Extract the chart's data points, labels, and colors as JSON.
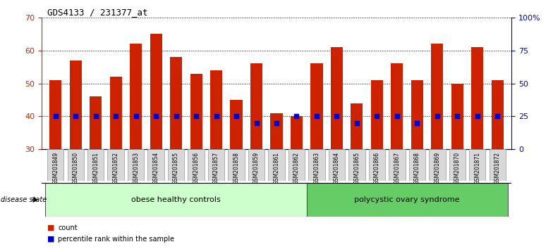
{
  "title": "GDS4133 / 231377_at",
  "samples": [
    "GSM201849",
    "GSM201850",
    "GSM201851",
    "GSM201852",
    "GSM201853",
    "GSM201854",
    "GSM201855",
    "GSM201856",
    "GSM201857",
    "GSM201858",
    "GSM201859",
    "GSM201861",
    "GSM201862",
    "GSM201863",
    "GSM201864",
    "GSM201865",
    "GSM201866",
    "GSM201867",
    "GSM201868",
    "GSM201869",
    "GSM201870",
    "GSM201871",
    "GSM201872"
  ],
  "counts": [
    51,
    57,
    46,
    52,
    62,
    65,
    58,
    53,
    54,
    45,
    56,
    41,
    40,
    56,
    61,
    44,
    51,
    56,
    51,
    62,
    50,
    61,
    51
  ],
  "percentile_vals": [
    25,
    25,
    25,
    25,
    25,
    25,
    25,
    25,
    25,
    25,
    20,
    20,
    25,
    25,
    25,
    20,
    25,
    25,
    20,
    25,
    25,
    25,
    25
  ],
  "group1_label": "obese healthy controls",
  "group2_label": "polycystic ovary syndrome",
  "group1_count": 13,
  "ylim_left": [
    30,
    70
  ],
  "ylim_right": [
    0,
    100
  ],
  "yticks_left": [
    30,
    40,
    50,
    60,
    70
  ],
  "yticks_right": [
    0,
    25,
    50,
    75,
    100
  ],
  "bar_color": "#cc2200",
  "dot_color": "#0000cc",
  "bg_color": "#ffffff",
  "grid_color": "#000000",
  "group1_color": "#ccffcc",
  "group2_color": "#66cc66",
  "disease_state_label": "disease state",
  "legend_count_label": "count",
  "legend_pct_label": "percentile rank within the sample"
}
